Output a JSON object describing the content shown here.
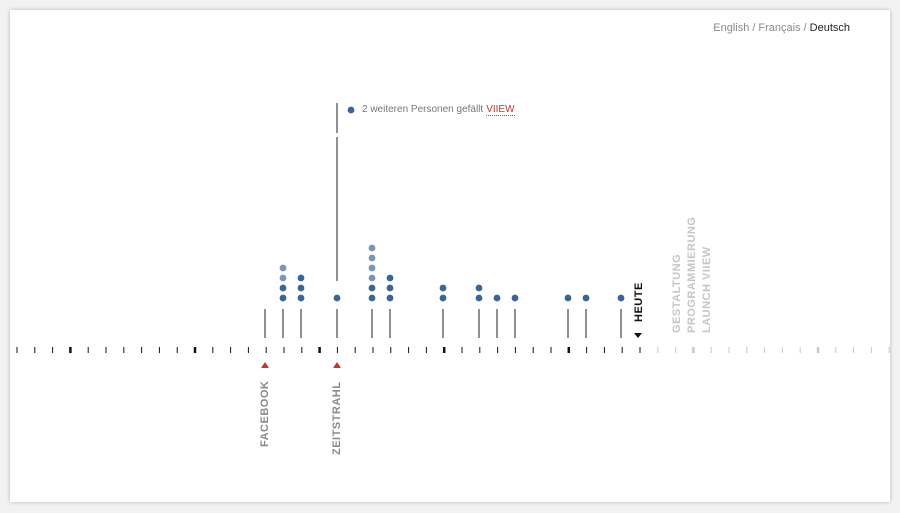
{
  "languages": {
    "items": [
      {
        "label": "English",
        "active": false
      },
      {
        "label": "Français",
        "active": false
      },
      {
        "label": "Deutsch",
        "active": true
      }
    ],
    "separator": "/"
  },
  "tooltip": {
    "text": "2 weiteren Personen gefällt",
    "brand": "VIIEW"
  },
  "timeline": {
    "markers": [
      {
        "label": "FACEBOOK",
        "color": "#c0392b"
      },
      {
        "label": "ZEITSTRAHL",
        "color": "#c0392b"
      }
    ],
    "today_label": "HEUTE",
    "future": [
      {
        "label": "GESTALTUNG"
      },
      {
        "label": "PROGRAMMIERUNG"
      },
      {
        "label": "LAUNCH VIIEW"
      }
    ],
    "dot_columns": [
      0,
      4,
      3,
      1,
      6,
      3,
      2,
      2,
      1,
      1,
      1,
      1,
      1
    ],
    "colors": {
      "dot": "#3b6596",
      "dot_light": "#7b95b6",
      "future_text": "#c6c6c6"
    }
  }
}
